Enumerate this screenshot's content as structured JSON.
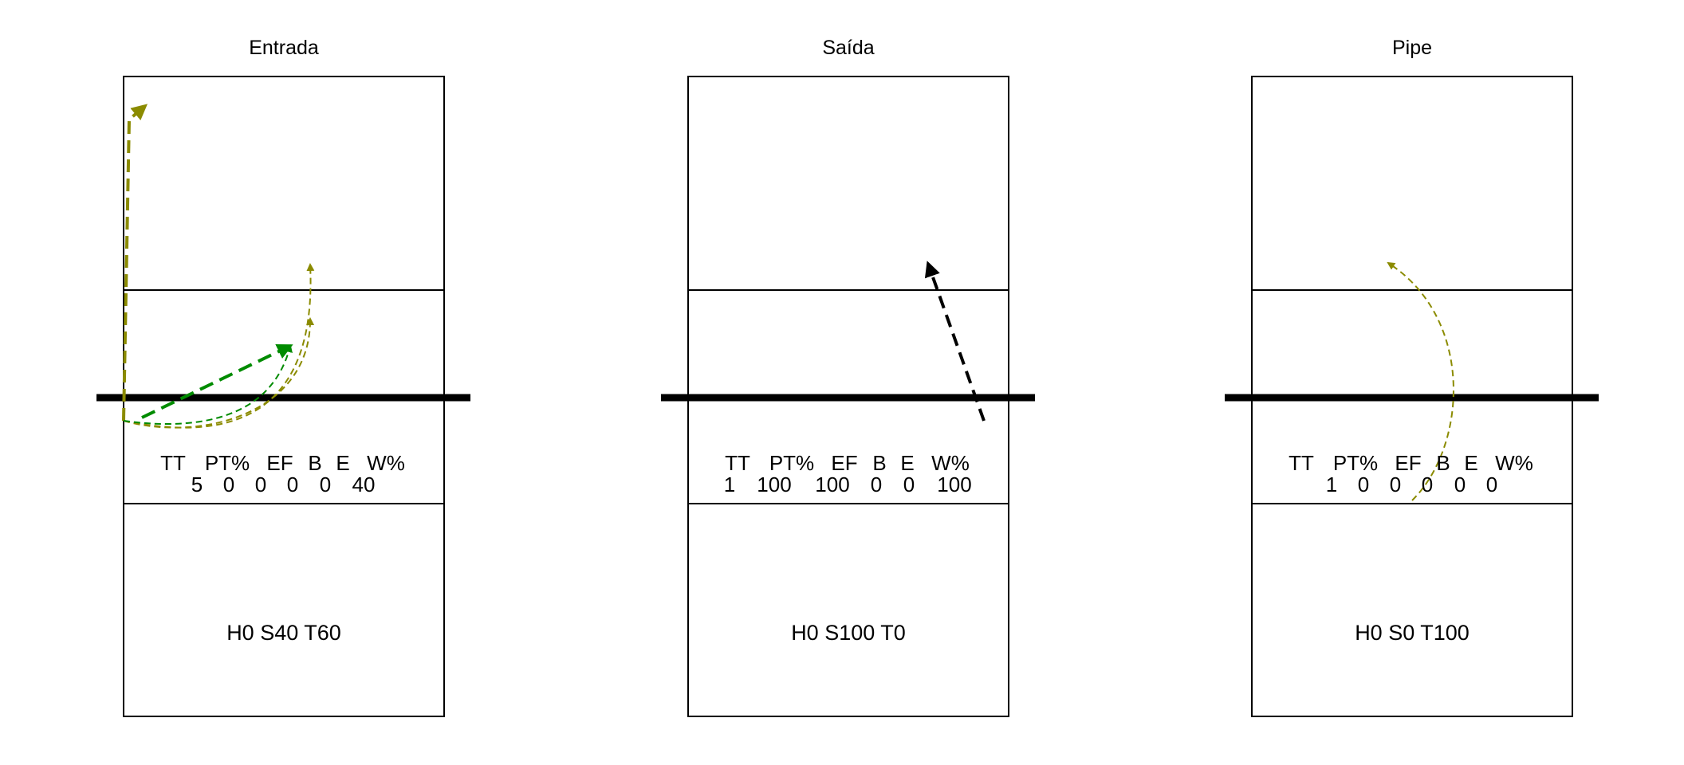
{
  "colors": {
    "background": "#ffffff",
    "court_line": "#000000",
    "net": "#000000",
    "olive": "#8b8b00",
    "green": "#008b00",
    "black": "#000000"
  },
  "panels": [
    {
      "title": "Entrada",
      "stats": {
        "headers": [
          "TT",
          "PT%",
          "EF",
          "B",
          "E",
          "W%"
        ],
        "values": [
          "5",
          "0",
          "0",
          "0",
          "0",
          "40"
        ]
      },
      "hst": "H0 S40 T60",
      "paths": [
        {
          "color": "olive",
          "style": "dashed-thick",
          "name": "attack-path-1"
        },
        {
          "color": "olive",
          "style": "dashed-thin",
          "name": "attack-path-2"
        },
        {
          "color": "olive",
          "style": "dashed-thin",
          "name": "attack-path-3"
        },
        {
          "color": "green",
          "style": "dashed-thick",
          "name": "attack-path-4"
        },
        {
          "color": "green",
          "style": "dashed-thin",
          "name": "attack-path-5"
        }
      ]
    },
    {
      "title": "Saída",
      "stats": {
        "headers": [
          "TT",
          "PT%",
          "EF",
          "B",
          "E",
          "W%"
        ],
        "values": [
          "1",
          "100",
          "100",
          "0",
          "0",
          "100"
        ]
      },
      "hst": "H0 S100 T0",
      "paths": [
        {
          "color": "black",
          "style": "dashed-thick",
          "name": "attack-path-1"
        }
      ]
    },
    {
      "title": "Pipe",
      "stats": {
        "headers": [
          "TT",
          "PT%",
          "EF",
          "B",
          "E",
          "W%"
        ],
        "values": [
          "1",
          "0",
          "0",
          "0",
          "0",
          "0"
        ]
      },
      "hst": "H0 S0 T100",
      "paths": [
        {
          "color": "olive",
          "style": "dashed-thin",
          "name": "attack-path-1"
        }
      ]
    }
  ]
}
